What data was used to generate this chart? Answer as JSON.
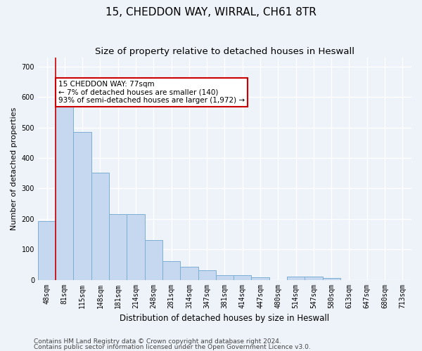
{
  "title": "15, CHEDDON WAY, WIRRAL, CH61 8TR",
  "subtitle": "Size of property relative to detached houses in Heswall",
  "xlabel": "Distribution of detached houses by size in Heswall",
  "ylabel": "Number of detached properties",
  "categories": [
    "48sqm",
    "81sqm",
    "115sqm",
    "148sqm",
    "181sqm",
    "214sqm",
    "248sqm",
    "281sqm",
    "314sqm",
    "347sqm",
    "381sqm",
    "414sqm",
    "447sqm",
    "480sqm",
    "514sqm",
    "547sqm",
    "580sqm",
    "613sqm",
    "647sqm",
    "680sqm",
    "713sqm"
  ],
  "values": [
    193,
    580,
    485,
    352,
    215,
    215,
    131,
    62,
    42,
    32,
    15,
    16,
    8,
    0,
    10,
    10,
    7,
    0,
    0,
    0,
    0
  ],
  "bar_color": "#c5d8f0",
  "bar_edge_color": "#7bafd4",
  "ylim": [
    0,
    730
  ],
  "yticks": [
    0,
    100,
    200,
    300,
    400,
    500,
    600,
    700
  ],
  "property_label": "15 CHEDDON WAY: 77sqm",
  "annotation_line1": "← 7% of detached houses are smaller (140)",
  "annotation_line2": "93% of semi-detached houses are larger (1,972) →",
  "vline_color": "#cc0000",
  "footer1": "Contains HM Land Registry data © Crown copyright and database right 2024.",
  "footer2": "Contains public sector information licensed under the Open Government Licence v3.0.",
  "background_color": "#eef2f9",
  "grid_color": "#ffffff",
  "title_fontsize": 11,
  "subtitle_fontsize": 9.5,
  "xlabel_fontsize": 8.5,
  "ylabel_fontsize": 8,
  "tick_fontsize": 7,
  "annotation_fontsize": 7.5,
  "footer_fontsize": 6.5
}
